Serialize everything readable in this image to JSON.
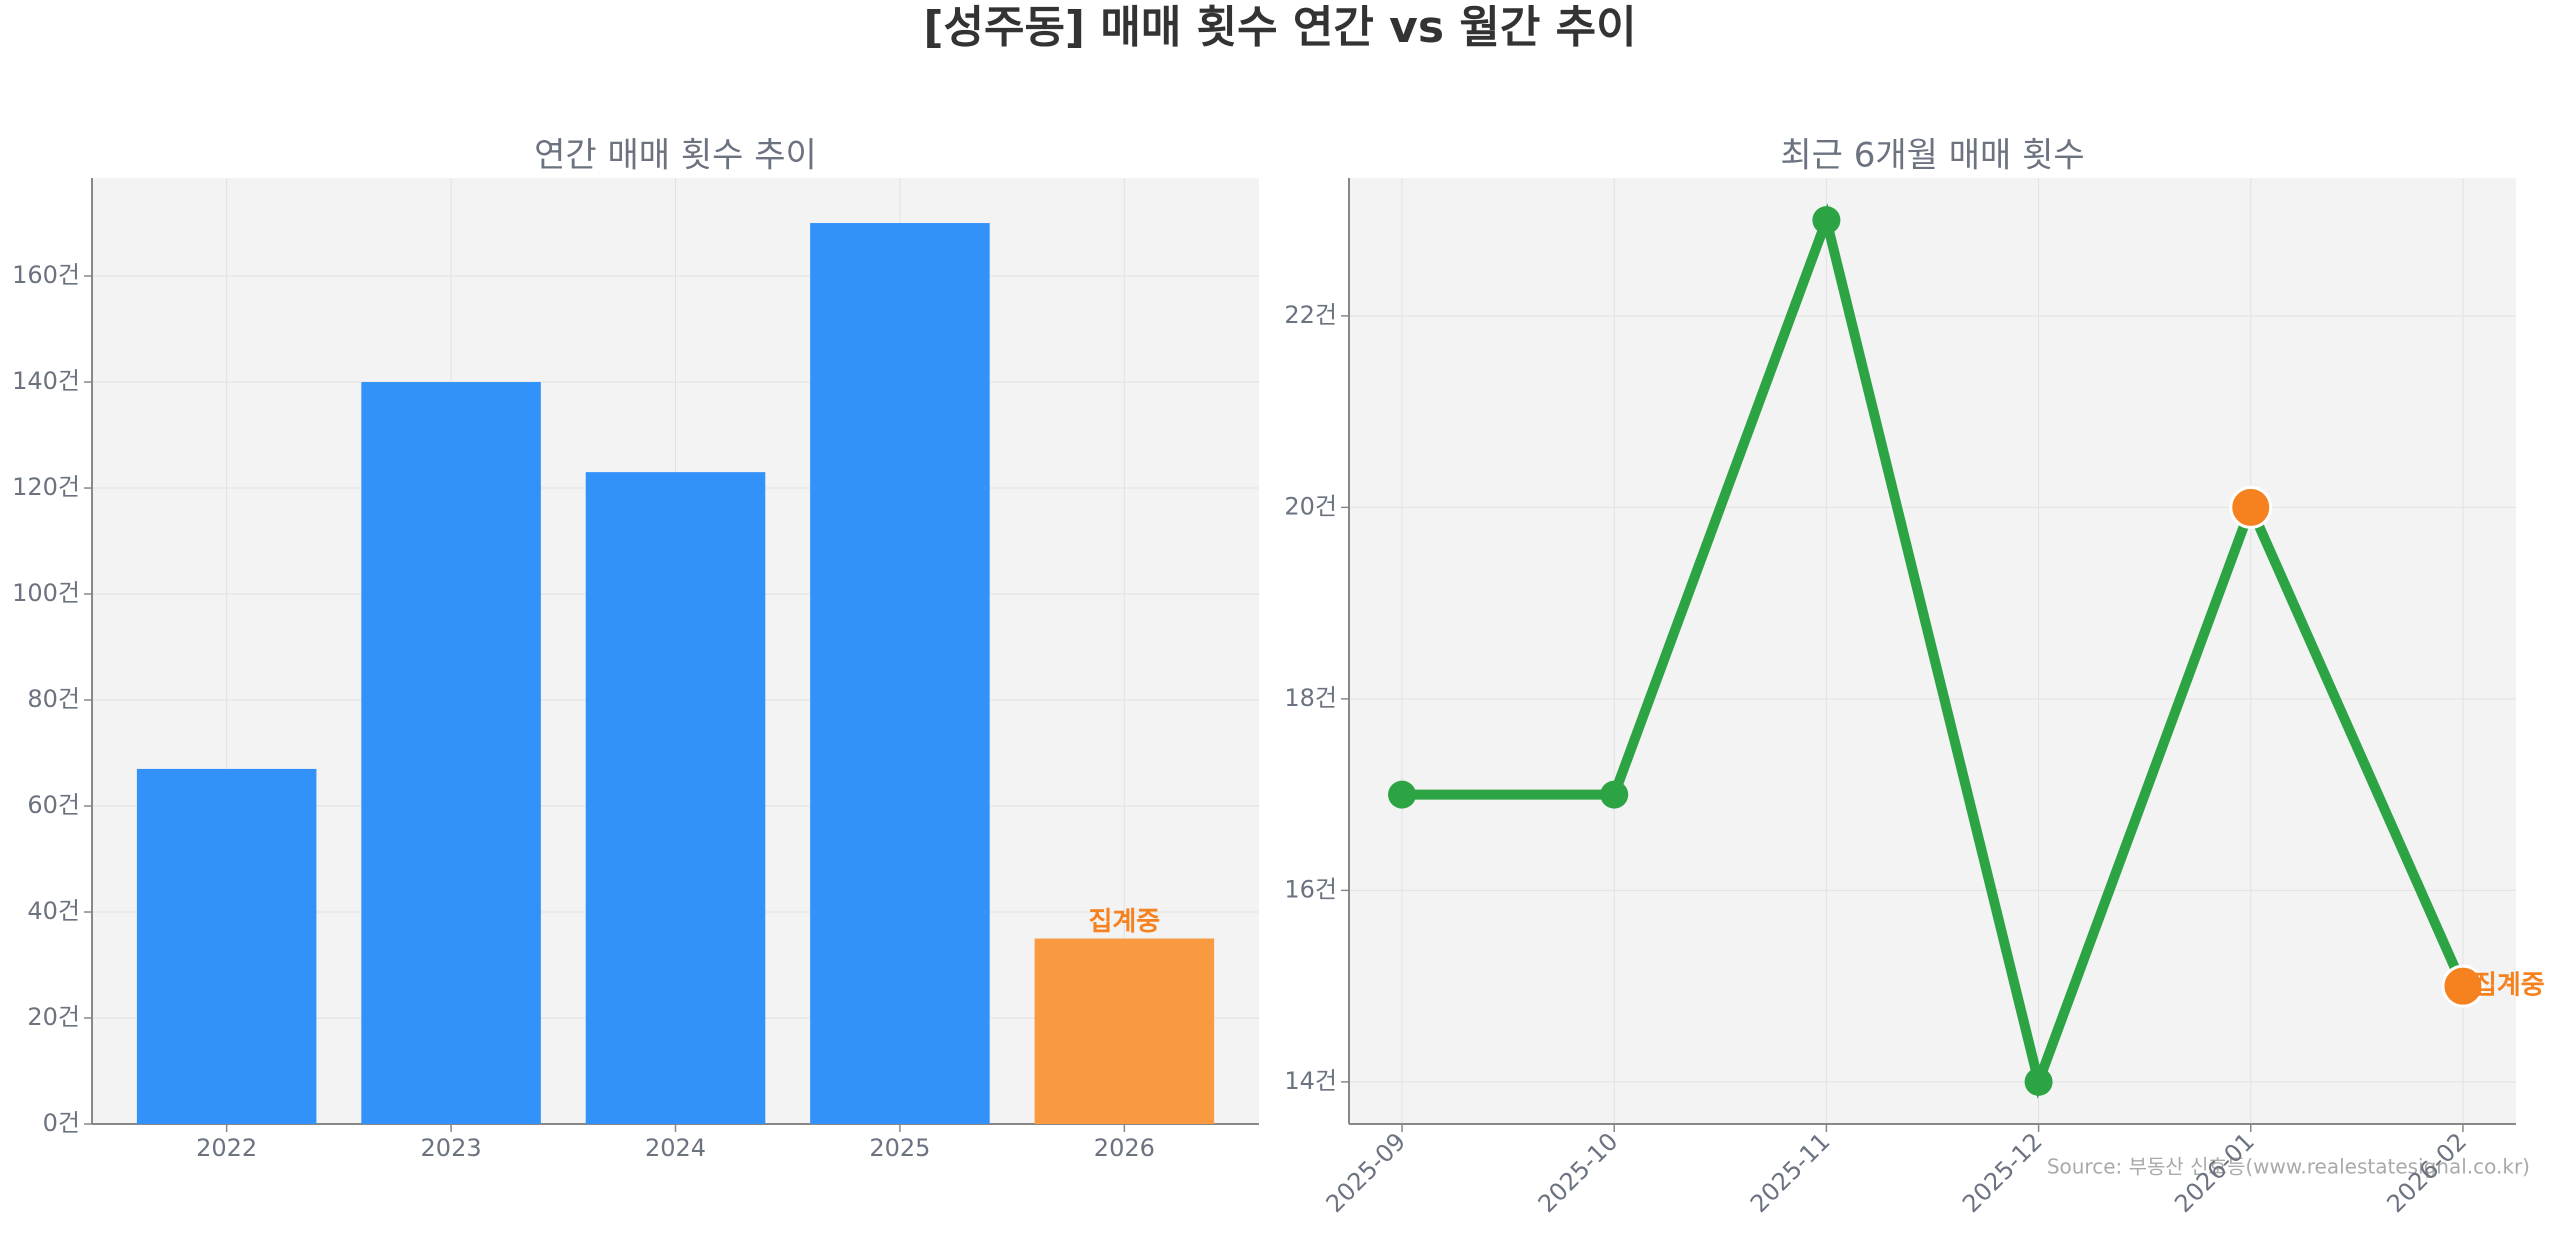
{
  "title": "[성주동] 매매 횟수 연간 vs 월간 추이",
  "source": "Source: 부동산 신호등(www.realestatesignal.co.kr)",
  "chart_data": [
    {
      "type": "bar",
      "title": "연간 매매 횟수 추이",
      "categories": [
        "2022",
        "2023",
        "2024",
        "2025",
        "2026"
      ],
      "values": [
        67,
        140,
        123,
        170,
        35
      ],
      "colors": [
        "#3292fa",
        "#3292fa",
        "#3292fa",
        "#3292fa",
        "#f99a40"
      ],
      "annotation": "집계중",
      "annotation_color": "#f5821f",
      "ylim": [
        0,
        178.5
      ],
      "yticks": [
        {
          "value": 0,
          "label": "0건"
        },
        {
          "value": 20,
          "label": "20건"
        },
        {
          "value": 40,
          "label": "40건"
        },
        {
          "value": 60,
          "label": "60건"
        },
        {
          "value": 80,
          "label": "80건"
        },
        {
          "value": 100,
          "label": "100건"
        },
        {
          "value": 120,
          "label": "120건"
        },
        {
          "value": 140,
          "label": "140건"
        },
        {
          "value": 160,
          "label": "160건"
        }
      ],
      "grid": true
    },
    {
      "type": "line",
      "title": "최근 6개월 매매 횟수",
      "categories": [
        "2025-09",
        "2025-10",
        "2025-11",
        "2025-12",
        "2026-01",
        "2026-02"
      ],
      "values": [
        17,
        17,
        23,
        14,
        20,
        15
      ],
      "color": "#2ca444",
      "marker_colors": [
        "#2ca444",
        "#2ca444",
        "#2ca444",
        "#2ca444",
        "#f5821f",
        "#f5821f"
      ],
      "annotation": "집계중",
      "annotation_color": "#f5821f",
      "ylim": [
        13.56,
        23.44
      ],
      "yticks": [
        {
          "value": 14,
          "label": "14건"
        },
        {
          "value": 16,
          "label": "16건"
        },
        {
          "value": 18,
          "label": "18건"
        },
        {
          "value": 20,
          "label": "20건"
        },
        {
          "value": 22,
          "label": "22건"
        }
      ],
      "grid": true
    }
  ]
}
